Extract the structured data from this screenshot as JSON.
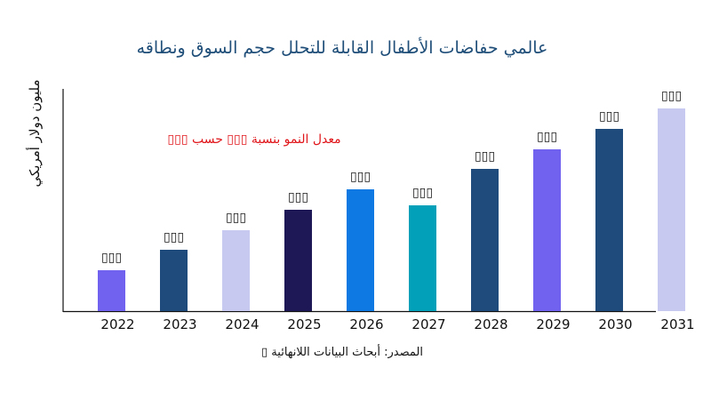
{
  "chart_data": {
    "type": "bar",
    "title": "عالمي حفاضات الأطفال القابلة للتحلل حجم السوق ونطاقه",
    "ylabel": "مليون دولار أمريكي",
    "xlabel": "",
    "categories": [
      "2022",
      "2023",
      "2024",
      "2025",
      "2026",
      "2027",
      "2028",
      "2029",
      "2030",
      "2031"
    ],
    "values": [
      46,
      69,
      91,
      114,
      137,
      119,
      160,
      182,
      205,
      228
    ],
    "data_labels": [
      "▯▯▯",
      "▯▯▯",
      "▯▯▯",
      "▯▯▯",
      "▯▯▯",
      "▯▯▯",
      "▯▯▯",
      "▯▯▯",
      "▯▯▯",
      "▯▯▯"
    ],
    "colors": [
      "#7163f0",
      "#1f4a7c",
      "#c8c9f0",
      "#1e1856",
      "#0e79e2",
      "#03a0b9",
      "#1f4a7c",
      "#7163f0",
      "#1f4a7c",
      "#c8c9f0"
    ],
    "ylim": [
      0,
      250
    ],
    "grid": false,
    "annotation": "معدل النمو بنسبة ▯▯▯ حسب ▯▯▯",
    "source": "المصدر: أبحاث البيانات اللانهائية ▯"
  }
}
